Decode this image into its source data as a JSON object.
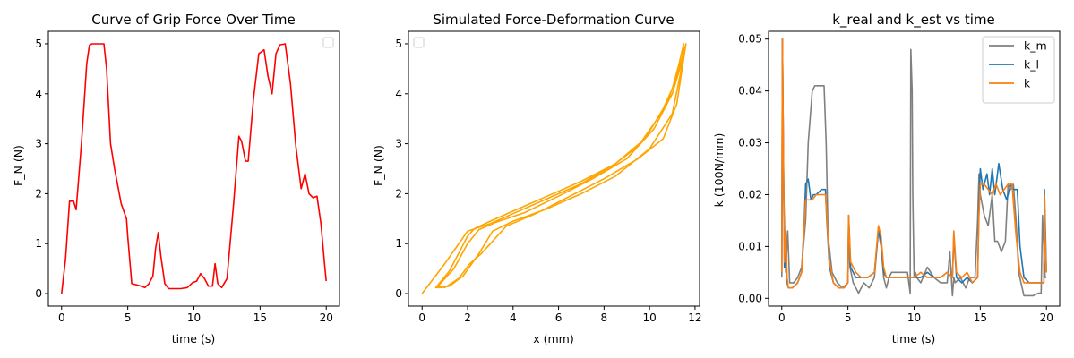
{
  "chart_data": [
    {
      "type": "line",
      "title": "Curve of Grip Force Over Time",
      "xlabel": "time (s)",
      "ylabel": "F_N (N)",
      "xlim": [
        -1.0,
        21.0
      ],
      "ylim": [
        -0.25,
        5.25
      ],
      "xticks": [
        0,
        5,
        10,
        15,
        20
      ],
      "yticks": [
        0,
        1,
        2,
        3,
        4,
        5
      ],
      "legend": "top-right (empty)",
      "grid": false,
      "series": [
        {
          "color": "#ff0000",
          "x": [
            0,
            0.3,
            0.6,
            0.9,
            1.1,
            1.5,
            1.9,
            2.1,
            2.3,
            2.6,
            3.2,
            3.4,
            3.7,
            4.0,
            4.5,
            4.9,
            5.0,
            5.3,
            5.6,
            6.0,
            6.3,
            6.6,
            6.9,
            7.1,
            7.3,
            7.5,
            7.8,
            8.1,
            8.6,
            9.0,
            9.5,
            9.9,
            10.2,
            10.5,
            10.8,
            11.1,
            11.4,
            11.6,
            11.8,
            12.1,
            12.5,
            13.0,
            13.4,
            13.6,
            13.9,
            14.1,
            14.5,
            14.9,
            15.3,
            15.6,
            15.9,
            16.2,
            16.5,
            16.9,
            17.3,
            17.7,
            18.1,
            18.4,
            18.7,
            19.0,
            19.3,
            19.6,
            19.9,
            20.0
          ],
          "y": [
            0.0,
            0.7,
            1.85,
            1.85,
            1.68,
            3.0,
            4.6,
            4.97,
            5.0,
            5.0,
            5.0,
            4.5,
            3.0,
            2.5,
            1.8,
            1.5,
            1.15,
            0.2,
            0.18,
            0.15,
            0.12,
            0.2,
            0.35,
            0.9,
            1.22,
            0.75,
            0.2,
            0.1,
            0.1,
            0.1,
            0.12,
            0.22,
            0.25,
            0.4,
            0.3,
            0.15,
            0.15,
            0.6,
            0.2,
            0.12,
            0.3,
            1.8,
            3.15,
            3.05,
            2.65,
            2.65,
            3.9,
            4.8,
            4.88,
            4.35,
            4.0,
            4.8,
            4.98,
            5.0,
            4.2,
            2.95,
            2.1,
            2.4,
            2.0,
            1.92,
            1.95,
            1.4,
            0.5,
            0.25
          ]
        }
      ]
    },
    {
      "type": "line",
      "title": "Simulated Force-Deformation Curve",
      "xlabel": "x (mm)",
      "ylabel": "F_N (N)",
      "xlim": [
        -0.6,
        12.2
      ],
      "ylim": [
        -0.25,
        5.25
      ],
      "xticks": [
        0,
        2,
        4,
        6,
        8,
        10,
        12
      ],
      "yticks": [
        0,
        1,
        2,
        3,
        4,
        5
      ],
      "legend": "top-left (empty)",
      "grid": false,
      "series": [
        {
          "color": "#ffa500",
          "x": [
            0.0,
            1.0,
            2.0,
            3.0,
            4.0,
            5.5,
            7.0,
            8.5,
            9.5,
            10.5,
            11.0,
            11.3,
            11.5,
            11.4,
            11.0,
            10.0,
            8.5,
            7.0,
            5.5,
            4.0,
            3.1,
            2.5,
            1.8,
            1.2,
            0.8,
            0.6,
            1.2,
            2.0,
            2.3,
            3.0,
            4.0,
            5.5,
            7.0,
            8.5,
            9.8,
            10.8,
            11.3,
            11.6,
            11.5,
            11.2,
            10.6,
            9.5,
            8.0,
            6.5,
            5.0,
            3.7,
            2.6,
            2.1,
            1.6,
            1.0,
            0.7,
            1.4,
            2.0,
            2.5,
            3.2,
            4.5,
            6.0,
            7.5,
            9.0,
            10.2,
            11.0,
            11.4,
            11.6
          ],
          "y": [
            0.0,
            0.6,
            1.25,
            1.4,
            1.6,
            1.9,
            2.2,
            2.6,
            2.95,
            3.6,
            4.1,
            4.6,
            5.0,
            4.5,
            3.6,
            2.9,
            2.35,
            2.0,
            1.7,
            1.45,
            1.25,
            0.8,
            0.35,
            0.15,
            0.12,
            0.12,
            0.45,
            1.15,
            1.3,
            1.45,
            1.65,
            1.95,
            2.25,
            2.6,
            3.1,
            3.85,
            4.5,
            5.0,
            4.7,
            3.8,
            3.1,
            2.7,
            2.3,
            1.95,
            1.6,
            1.35,
            0.8,
            0.6,
            0.3,
            0.12,
            0.15,
            0.5,
            1.0,
            1.28,
            1.42,
            1.62,
            1.95,
            2.3,
            2.7,
            3.3,
            4.0,
            4.6,
            5.0
          ]
        }
      ]
    },
    {
      "type": "line",
      "title": "k_real and k_est vs time",
      "xlabel": "time (s)",
      "ylabel": "k (100N/mm)",
      "xlim": [
        -1.0,
        21.0
      ],
      "ylim": [
        -0.0015,
        0.0515
      ],
      "xticks": [
        0,
        5,
        10,
        15,
        20
      ],
      "yticks": [
        0.0,
        0.01,
        0.02,
        0.03,
        0.04,
        0.05
      ],
      "ytick_labels": [
        "0.00",
        "0.01",
        "0.02",
        "0.03",
        "0.04",
        "0.05"
      ],
      "legend": "top-right",
      "grid": false,
      "series": [
        {
          "name": "k_m",
          "color": "#808080",
          "x": [
            0,
            0.05,
            0.15,
            0.3,
            0.45,
            0.6,
            0.9,
            1.2,
            1.5,
            1.8,
            2.0,
            2.3,
            2.5,
            2.8,
            3.2,
            3.35,
            3.5,
            3.8,
            4.2,
            4.6,
            5.0,
            5.05,
            5.15,
            5.4,
            5.8,
            6.2,
            6.6,
            7.0,
            7.3,
            7.5,
            7.7,
            7.9,
            8.1,
            8.3,
            9.0,
            9.5,
            9.7,
            9.75,
            9.85,
            9.9,
            10.0,
            10.1,
            10.2,
            10.5,
            11.0,
            11.5,
            12.0,
            12.5,
            12.7,
            12.9,
            13.0,
            13.1,
            13.5,
            13.9,
            14.2,
            14.6,
            14.8,
            14.9,
            15.0,
            15.3,
            15.6,
            15.9,
            16.1,
            16.3,
            16.6,
            16.9,
            17.1,
            17.3,
            17.5,
            17.7,
            17.9,
            18.3,
            19.0,
            19.4,
            19.6,
            19.7,
            19.8,
            19.9,
            20.0
          ],
          "y": [
            0.004,
            0.05,
            0.02,
            0.005,
            0.013,
            0.003,
            0.003,
            0.004,
            0.006,
            0.015,
            0.03,
            0.04,
            0.041,
            0.041,
            0.041,
            0.03,
            0.012,
            0.005,
            0.003,
            0.002,
            0.003,
            0.015,
            0.006,
            0.003,
            0.001,
            0.003,
            0.002,
            0.004,
            0.013,
            0.01,
            0.004,
            0.002,
            0.004,
            0.005,
            0.005,
            0.005,
            0.001,
            0.048,
            0.04,
            0.02,
            0.004,
            0.005,
            0.004,
            0.003,
            0.006,
            0.004,
            0.003,
            0.003,
            0.009,
            0.0005,
            0.004,
            0.003,
            0.004,
            0.002,
            0.004,
            0.004,
            0.015,
            0.024,
            0.02,
            0.016,
            0.014,
            0.02,
            0.011,
            0.011,
            0.009,
            0.011,
            0.022,
            0.021,
            0.022,
            0.015,
            0.005,
            0.0005,
            0.0005,
            0.001,
            0.001,
            0.016,
            0.01,
            0.004,
            0.004
          ]
        },
        {
          "name": "k_l",
          "color": "#1f77b4",
          "x": [
            0,
            0.05,
            0.2,
            0.3,
            0.4,
            0.5,
            0.8,
            1.2,
            1.5,
            1.7,
            1.8,
            2.0,
            2.2,
            2.4,
            2.6,
            3.0,
            3.3,
            3.4,
            3.6,
            3.9,
            4.3,
            4.7,
            5.0,
            5.05,
            5.2,
            5.6,
            6.0,
            6.5,
            7.0,
            7.3,
            7.5,
            7.7,
            7.9,
            8.2,
            8.5,
            9.0,
            9.5,
            10.0,
            10.5,
            11.0,
            11.5,
            12.0,
            12.5,
            12.9,
            13.0,
            13.2,
            13.6,
            14.0,
            14.4,
            14.8,
            14.9,
            15.0,
            15.2,
            15.5,
            15.7,
            15.9,
            16.1,
            16.4,
            16.7,
            17.0,
            17.3,
            17.5,
            17.8,
            18.0,
            18.3,
            18.7,
            19.2,
            19.6,
            19.8,
            19.85,
            19.9,
            20.0
          ],
          "y": [
            0.005,
            0.05,
            0.006,
            0.013,
            0.003,
            0.002,
            0.002,
            0.003,
            0.005,
            0.015,
            0.022,
            0.023,
            0.019,
            0.02,
            0.02,
            0.021,
            0.021,
            0.015,
            0.006,
            0.003,
            0.002,
            0.002,
            0.003,
            0.016,
            0.006,
            0.004,
            0.004,
            0.004,
            0.005,
            0.013,
            0.011,
            0.005,
            0.004,
            0.004,
            0.004,
            0.004,
            0.004,
            0.004,
            0.004,
            0.005,
            0.004,
            0.004,
            0.005,
            0.004,
            0.012,
            0.004,
            0.003,
            0.004,
            0.003,
            0.004,
            0.018,
            0.025,
            0.021,
            0.024,
            0.02,
            0.025,
            0.02,
            0.026,
            0.021,
            0.019,
            0.022,
            0.021,
            0.021,
            0.01,
            0.004,
            0.003,
            0.003,
            0.003,
            0.003,
            0.021,
            0.015,
            0.005
          ]
        },
        {
          "name": "k",
          "color": "#ff7f0e",
          "x": [
            0,
            0.05,
            0.2,
            0.3,
            0.4,
            0.5,
            0.8,
            1.2,
            1.5,
            1.7,
            1.8,
            2.0,
            2.3,
            2.6,
            3.0,
            3.3,
            3.4,
            3.6,
            3.9,
            4.3,
            4.7,
            5.0,
            5.05,
            5.2,
            5.6,
            6.0,
            6.5,
            7.0,
            7.3,
            7.5,
            7.7,
            7.9,
            8.2,
            8.5,
            9.0,
            9.5,
            10.0,
            10.5,
            11.0,
            11.5,
            12.0,
            12.5,
            12.9,
            13.0,
            13.2,
            13.6,
            14.0,
            14.4,
            14.8,
            14.9,
            15.0,
            15.3,
            15.6,
            15.9,
            16.2,
            16.5,
            16.8,
            17.1,
            17.4,
            17.7,
            18.0,
            18.3,
            18.7,
            19.2,
            19.6,
            19.8,
            19.85,
            19.9,
            20.0
          ],
          "y": [
            0.005,
            0.05,
            0.007,
            0.013,
            0.004,
            0.002,
            0.002,
            0.003,
            0.005,
            0.014,
            0.019,
            0.019,
            0.019,
            0.02,
            0.02,
            0.02,
            0.016,
            0.007,
            0.003,
            0.002,
            0.002,
            0.003,
            0.016,
            0.007,
            0.005,
            0.004,
            0.004,
            0.005,
            0.014,
            0.012,
            0.006,
            0.004,
            0.004,
            0.004,
            0.004,
            0.004,
            0.004,
            0.005,
            0.004,
            0.004,
            0.004,
            0.005,
            0.004,
            0.013,
            0.005,
            0.004,
            0.005,
            0.003,
            0.004,
            0.016,
            0.022,
            0.022,
            0.021,
            0.02,
            0.022,
            0.02,
            0.021,
            0.022,
            0.022,
            0.012,
            0.005,
            0.003,
            0.003,
            0.003,
            0.003,
            0.003,
            0.02,
            0.012,
            0.005
          ]
        }
      ]
    }
  ]
}
